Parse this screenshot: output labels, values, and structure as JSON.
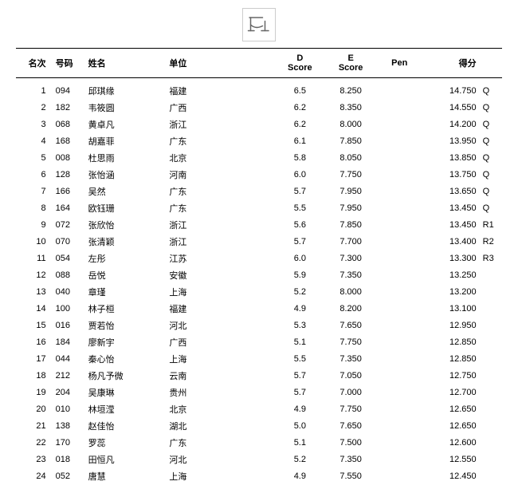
{
  "icon": {
    "name": "uneven-bars-icon",
    "stroke": "#666666"
  },
  "headers": {
    "rank": "名次",
    "bib": "号码",
    "name": "姓名",
    "team": "单位",
    "d": "D\nScore",
    "e": "E\nScore",
    "pen": "Pen",
    "total": "得分"
  },
  "rows": [
    {
      "rank": "1",
      "bib": "094",
      "name": "邱琪缘",
      "team": "福建",
      "d": "6.5",
      "e": "8.250",
      "pen": "",
      "total": "14.750",
      "q": "Q"
    },
    {
      "rank": "2",
      "bib": "182",
      "name": "韦筱圆",
      "team": "广西",
      "d": "6.2",
      "e": "8.350",
      "pen": "",
      "total": "14.550",
      "q": "Q"
    },
    {
      "rank": "3",
      "bib": "068",
      "name": "黄卓凡",
      "team": "浙江",
      "d": "6.2",
      "e": "8.000",
      "pen": "",
      "total": "14.200",
      "q": "Q"
    },
    {
      "rank": "4",
      "bib": "168",
      "name": "胡嘉菲",
      "team": "广东",
      "d": "6.1",
      "e": "7.850",
      "pen": "",
      "total": "13.950",
      "q": "Q"
    },
    {
      "rank": "5",
      "bib": "008",
      "name": "杜思雨",
      "team": "北京",
      "d": "5.8",
      "e": "8.050",
      "pen": "",
      "total": "13.850",
      "q": "Q"
    },
    {
      "rank": "6",
      "bib": "128",
      "name": "张怡涵",
      "team": "河南",
      "d": "6.0",
      "e": "7.750",
      "pen": "",
      "total": "13.750",
      "q": "Q"
    },
    {
      "rank": "7",
      "bib": "166",
      "name": "吴然",
      "team": "广东",
      "d": "5.7",
      "e": "7.950",
      "pen": "",
      "total": "13.650",
      "q": "Q"
    },
    {
      "rank": "8",
      "bib": "164",
      "name": "欧钰珊",
      "team": "广东",
      "d": "5.5",
      "e": "7.950",
      "pen": "",
      "total": "13.450",
      "q": "Q"
    },
    {
      "rank": "9",
      "bib": "072",
      "name": "张欣怡",
      "team": "浙江",
      "d": "5.6",
      "e": "7.850",
      "pen": "",
      "total": "13.450",
      "q": "R1"
    },
    {
      "rank": "10",
      "bib": "070",
      "name": "张清颖",
      "team": "浙江",
      "d": "5.7",
      "e": "7.700",
      "pen": "",
      "total": "13.400",
      "q": "R2"
    },
    {
      "rank": "11",
      "bib": "054",
      "name": "左彤",
      "team": "江苏",
      "d": "6.0",
      "e": "7.300",
      "pen": "",
      "total": "13.300",
      "q": "R3"
    },
    {
      "rank": "12",
      "bib": "088",
      "name": "岳悦",
      "team": "安徽",
      "d": "5.9",
      "e": "7.350",
      "pen": "",
      "total": "13.250",
      "q": ""
    },
    {
      "rank": "13",
      "bib": "040",
      "name": "章瑾",
      "team": "上海",
      "d": "5.2",
      "e": "8.000",
      "pen": "",
      "total": "13.200",
      "q": ""
    },
    {
      "rank": "14",
      "bib": "100",
      "name": "林子桓",
      "team": "福建",
      "d": "4.9",
      "e": "8.200",
      "pen": "",
      "total": "13.100",
      "q": ""
    },
    {
      "rank": "15",
      "bib": "016",
      "name": "贾若怡",
      "team": "河北",
      "d": "5.3",
      "e": "7.650",
      "pen": "",
      "total": "12.950",
      "q": ""
    },
    {
      "rank": "16",
      "bib": "184",
      "name": "廖新宇",
      "team": "广西",
      "d": "5.1",
      "e": "7.750",
      "pen": "",
      "total": "12.850",
      "q": ""
    },
    {
      "rank": "17",
      "bib": "044",
      "name": "秦心怡",
      "team": "上海",
      "d": "5.5",
      "e": "7.350",
      "pen": "",
      "total": "12.850",
      "q": ""
    },
    {
      "rank": "18",
      "bib": "212",
      "name": "杨凡予微",
      "team": "云南",
      "d": "5.7",
      "e": "7.050",
      "pen": "",
      "total": "12.750",
      "q": ""
    },
    {
      "rank": "19",
      "bib": "204",
      "name": "吴康琳",
      "team": "贵州",
      "d": "5.7",
      "e": "7.000",
      "pen": "",
      "total": "12.700",
      "q": ""
    },
    {
      "rank": "20",
      "bib": "010",
      "name": "林垣滢",
      "team": "北京",
      "d": "4.9",
      "e": "7.750",
      "pen": "",
      "total": "12.650",
      "q": ""
    },
    {
      "rank": "21",
      "bib": "138",
      "name": "赵佳怡",
      "team": "湖北",
      "d": "5.0",
      "e": "7.650",
      "pen": "",
      "total": "12.650",
      "q": ""
    },
    {
      "rank": "22",
      "bib": "170",
      "name": "罗蕊",
      "team": "广东",
      "d": "5.1",
      "e": "7.500",
      "pen": "",
      "total": "12.600",
      "q": ""
    },
    {
      "rank": "23",
      "bib": "018",
      "name": "田恒凡",
      "team": "河北",
      "d": "5.2",
      "e": "7.350",
      "pen": "",
      "total": "12.550",
      "q": ""
    },
    {
      "rank": "24",
      "bib": "052",
      "name": "唐慧",
      "team": "上海",
      "d": "4.9",
      "e": "7.550",
      "pen": "",
      "total": "12.450",
      "q": ""
    }
  ]
}
